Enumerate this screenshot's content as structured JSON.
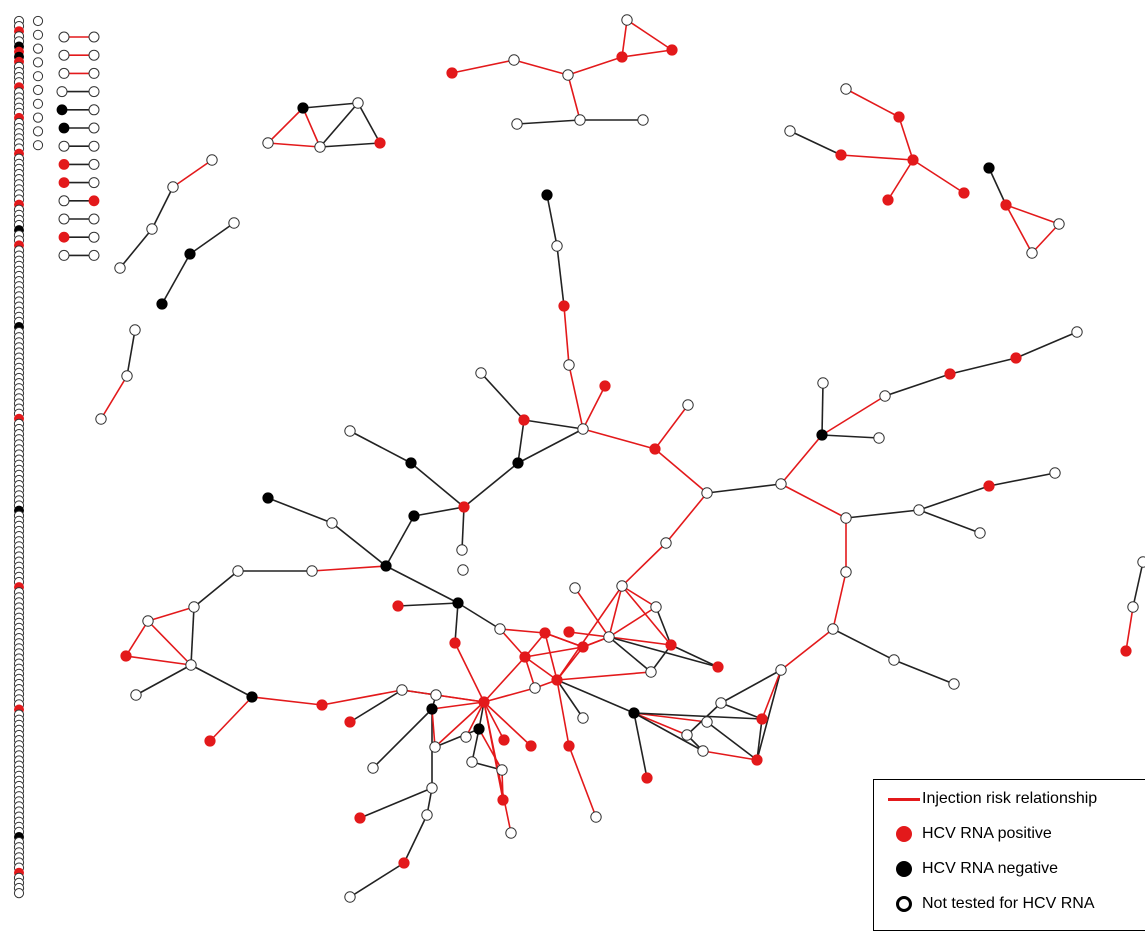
{
  "colors": {
    "injection_edge": "#e3191b",
    "other_edge": "#222222",
    "hcv_positive": "#e3191b",
    "hcv_negative": "#000000",
    "not_tested": "#ffffff",
    "node_stroke": "#333333"
  },
  "legend": {
    "injection_label": "Injection risk relationship",
    "positive_label": "HCV RNA positive",
    "negative_label": "HCV RNA negative",
    "not_tested_label": "Not tested for HCV RNA"
  },
  "isolates": {
    "column1": [
      "w",
      "w",
      "r",
      "w",
      "w",
      "b",
      "r",
      "b",
      "r",
      "w",
      "w",
      "w",
      "w",
      "r",
      "w",
      "w",
      "w",
      "w",
      "w",
      "r",
      "w",
      "w",
      "w",
      "w",
      "w",
      "w",
      "r",
      "w",
      "w",
      "w",
      "w",
      "w",
      "w",
      "w",
      "w",
      "w",
      "r",
      "w",
      "w",
      "w",
      "w",
      "b",
      "w",
      "w",
      "r",
      "w",
      "w",
      "w",
      "w",
      "w",
      "w",
      "w",
      "w",
      "w",
      "w",
      "w",
      "w",
      "w",
      "w",
      "w",
      "b",
      "w",
      "w",
      "w",
      "w",
      "w",
      "w",
      "w",
      "w",
      "w",
      "w",
      "w",
      "w",
      "w",
      "w",
      "w",
      "w",
      "w",
      "r",
      "w",
      "w",
      "w",
      "w",
      "w",
      "w",
      "w",
      "w",
      "w",
      "w",
      "w",
      "w",
      "w",
      "w",
      "w",
      "w",
      "w",
      "b",
      "w",
      "w",
      "w",
      "w",
      "w",
      "w",
      "w",
      "w",
      "w",
      "w",
      "w",
      "w",
      "w",
      "w",
      "r",
      "w",
      "w",
      "w",
      "w",
      "w",
      "w",
      "w",
      "w",
      "w",
      "w",
      "w",
      "w",
      "w",
      "w",
      "w",
      "w",
      "w",
      "w",
      "w",
      "w",
      "w",
      "w",
      "w",
      "r",
      "w",
      "w",
      "w",
      "w",
      "w",
      "w",
      "w",
      "w",
      "w",
      "w",
      "w",
      "w",
      "w",
      "w",
      "w",
      "w",
      "w",
      "w",
      "w",
      "w",
      "w",
      "w",
      "w",
      "w",
      "b",
      "w",
      "w",
      "w",
      "w",
      "w",
      "w",
      "r",
      "w",
      "w",
      "w",
      "w"
    ],
    "column2": [
      "w",
      "w",
      "w",
      "w",
      "w",
      "w",
      "w",
      "w",
      "w",
      "w"
    ]
  },
  "dyads": [
    {
      "a": "w",
      "b": "w",
      "edge": "injection"
    },
    {
      "a": "w",
      "b": "w",
      "edge": "injection"
    },
    {
      "a": "w",
      "b": "w",
      "edge": "injection"
    },
    {
      "a": "w",
      "b": "w",
      "edge": "other"
    },
    {
      "a": "b",
      "b": "w",
      "edge": "other"
    },
    {
      "a": "b",
      "b": "w",
      "edge": "other"
    },
    {
      "a": "w",
      "b": "w",
      "edge": "other"
    },
    {
      "a": "r",
      "b": "w",
      "edge": "other"
    },
    {
      "a": "r",
      "b": "w",
      "edge": "other"
    },
    {
      "a": "w",
      "b": "r",
      "edge": "other"
    },
    {
      "a": "w",
      "b": "w",
      "edge": "other"
    },
    {
      "a": "r",
      "b": "w",
      "edge": "other"
    },
    {
      "a": "w",
      "b": "w",
      "edge": "other"
    }
  ]
}
